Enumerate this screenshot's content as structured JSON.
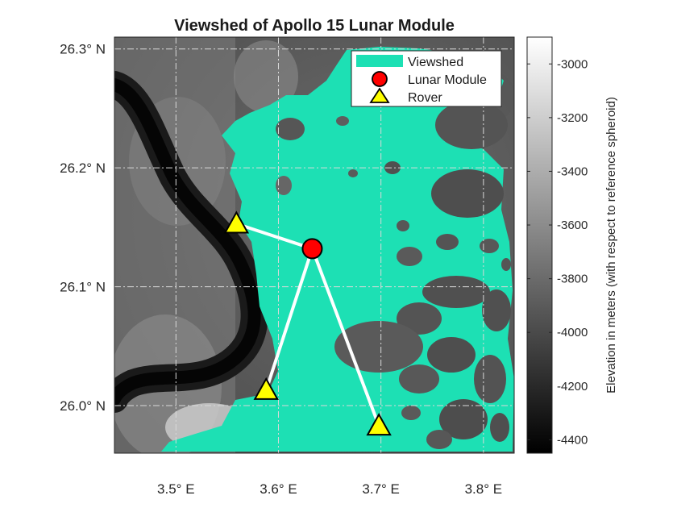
{
  "title": "Viewshed of Apollo 15 Lunar Module",
  "map": {
    "lon_range": [
      3.44,
      3.83
    ],
    "lat_range": [
      25.96,
      26.31
    ],
    "x_ticks": [
      {
        "value": 3.5,
        "label": "3.5° E"
      },
      {
        "value": 3.6,
        "label": "3.6° E"
      },
      {
        "value": 3.7,
        "label": "3.7° E"
      },
      {
        "value": 3.8,
        "label": "3.8° E"
      }
    ],
    "y_ticks": [
      {
        "value": 26.0,
        "label": "26.0° N"
      },
      {
        "value": 26.1,
        "label": "26.1° N"
      },
      {
        "value": 26.2,
        "label": "26.2° N"
      },
      {
        "value": 26.3,
        "label": "26.3° N"
      }
    ],
    "grid": true,
    "lunar_module": {
      "lon": 3.633,
      "lat": 26.132
    },
    "rovers": [
      {
        "lon": 3.559,
        "lat": 26.153
      },
      {
        "lon": 3.588,
        "lat": 26.013
      },
      {
        "lon": 3.698,
        "lat": 25.983
      }
    ]
  },
  "colorbar": {
    "label": "Elevation in meters (with respect to reference spheroid)",
    "range": [
      -4450,
      -2900
    ],
    "ticks": [
      -3000,
      -3200,
      -3400,
      -3600,
      -3800,
      -4000,
      -4200,
      -4400
    ]
  },
  "legend": {
    "placement": "top-right",
    "items": [
      "Viewshed",
      "Lunar Module",
      "Rover"
    ]
  },
  "colors": {
    "viewshed": "#1de0b4",
    "lunar_module": "#ff0000",
    "rover": "#ffff00",
    "traverse": "#ffffff"
  }
}
